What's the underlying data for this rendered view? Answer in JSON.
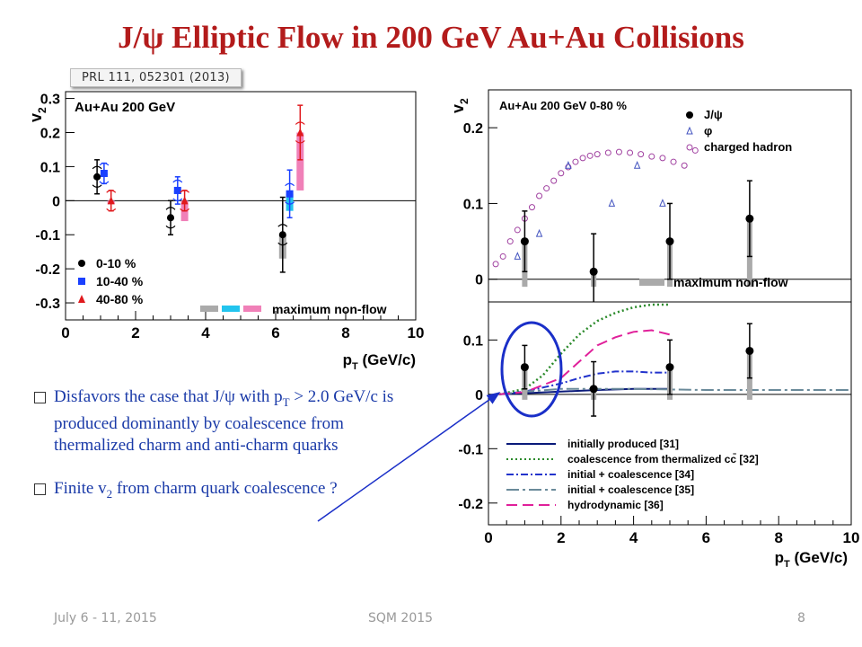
{
  "slide": {
    "title": "J/ψ Elliptic Flow in 200 GeV Au+Au Collisions",
    "reference": "PRL 111, 052301 (2013)",
    "bullets": [
      {
        "pre": "Disfavors the case that J/ψ with p",
        "sub": "T",
        "post": " > 2.0 GeV/c is produced dominantly by coalescence from thermalized charm and anti-charm quarks"
      },
      {
        "pre": "Finite v",
        "sub": "2",
        "post": " from charm quark coalescence ?"
      }
    ],
    "footer": {
      "date": "July 6 - 11,  2015",
      "conference": "SQM 2015",
      "page": "8"
    },
    "colors": {
      "title": "#b31b1b",
      "bullet_text": "#1a3aa8",
      "ellipse": "#1a2fc8"
    }
  },
  "chart_data": [
    {
      "type": "scatter",
      "ylabel": "v2",
      "xlabel": "pT (GeV/c)",
      "xlim": [
        0,
        10
      ],
      "ylim": [
        -0.35,
        0.32
      ],
      "xticks": [
        "0",
        "2",
        "4",
        "6",
        "8",
        "10"
      ],
      "yticks": [
        "0.3",
        "0.2",
        "0.1",
        "0",
        "-0.1",
        "-0.2",
        "-0.3"
      ],
      "label": "Au+Au 200 GeV",
      "legend_placement": "bottom-left",
      "legend_note": "maximum non-flow",
      "series": [
        {
          "name": "0-10 %",
          "color": "#000000",
          "marker": "circle",
          "points": [
            {
              "x": 0.9,
              "y": 0.07,
              "err": 0.05,
              "nf_lo": 0.07,
              "nf_hi": 0.07
            },
            {
              "x": 3.0,
              "y": -0.05,
              "err": 0.05,
              "nf_lo": -0.05,
              "nf_hi": -0.05
            },
            {
              "x": 6.2,
              "y": -0.1,
              "err": 0.11,
              "nf_lo": -0.17,
              "nf_hi": -0.1
            }
          ]
        },
        {
          "name": "10-40 %",
          "color": "#1a40ff",
          "marker": "square",
          "points": [
            {
              "x": 1.1,
              "y": 0.08,
              "err": 0.03,
              "nf_lo": 0.075,
              "nf_hi": 0.08
            },
            {
              "x": 3.2,
              "y": 0.03,
              "err": 0.04,
              "nf_lo": 0.02,
              "nf_hi": 0.03
            },
            {
              "x": 6.4,
              "y": 0.02,
              "err": 0.07,
              "nf_lo": -0.03,
              "nf_hi": 0.02
            }
          ]
        },
        {
          "name": "40-80 %",
          "color": "#e0191d",
          "marker": "triangle",
          "points": [
            {
              "x": 1.3,
              "y": 0.0,
              "err": 0.03,
              "nf_lo": -0.01,
              "nf_hi": 0.0
            },
            {
              "x": 3.4,
              "y": 0.0,
              "err": 0.03,
              "nf_lo": -0.06,
              "nf_hi": 0.0
            },
            {
              "x": 6.7,
              "y": 0.2,
              "err": 0.08,
              "nf_lo": 0.03,
              "nf_hi": 0.2
            }
          ]
        }
      ],
      "nonflow_colors": [
        "#aaaaaa",
        "#22c4ee",
        "#f080b8"
      ]
    },
    {
      "type": "scatter",
      "ylabel": "v2",
      "xlim": [
        0,
        10
      ],
      "ylim": [
        -0.03,
        0.25
      ],
      "yticks": [
        "0.2",
        "0.1",
        "0"
      ],
      "label": "Au+Au 200 GeV 0-80 %",
      "legend_placement": "top-right",
      "legend_note": "maximum non-flow",
      "series": [
        {
          "name": "J/ψ",
          "color": "#000000",
          "marker": "circle",
          "points": [
            {
              "x": 1.0,
              "y": 0.05,
              "err": 0.04
            },
            {
              "x": 2.9,
              "y": 0.01,
              "err": 0.05
            },
            {
              "x": 5.0,
              "y": 0.05,
              "err": 0.05
            },
            {
              "x": 7.2,
              "y": 0.08,
              "err": 0.05
            }
          ]
        },
        {
          "name": "φ",
          "color": "#4455c0",
          "marker": "triangle-open",
          "points": [
            {
              "x": 0.8,
              "y": 0.03
            },
            {
              "x": 1.4,
              "y": 0.06
            },
            {
              "x": 2.2,
              "y": 0.15
            },
            {
              "x": 3.4,
              "y": 0.1
            },
            {
              "x": 4.1,
              "y": 0.15
            },
            {
              "x": 4.8,
              "y": 0.1
            }
          ]
        },
        {
          "name": "charged hadron",
          "color": "#a040a0",
          "marker": "circle-open",
          "points": [
            {
              "x": 0.2,
              "y": 0.02
            },
            {
              "x": 0.4,
              "y": 0.03
            },
            {
              "x": 0.6,
              "y": 0.05
            },
            {
              "x": 0.8,
              "y": 0.065
            },
            {
              "x": 1.0,
              "y": 0.08
            },
            {
              "x": 1.2,
              "y": 0.095
            },
            {
              "x": 1.4,
              "y": 0.11
            },
            {
              "x": 1.6,
              "y": 0.12
            },
            {
              "x": 1.8,
              "y": 0.13
            },
            {
              "x": 2.0,
              "y": 0.14
            },
            {
              "x": 2.2,
              "y": 0.148
            },
            {
              "x": 2.4,
              "y": 0.155
            },
            {
              "x": 2.6,
              "y": 0.16
            },
            {
              "x": 2.8,
              "y": 0.163
            },
            {
              "x": 3.0,
              "y": 0.165
            },
            {
              "x": 3.3,
              "y": 0.167
            },
            {
              "x": 3.6,
              "y": 0.168
            },
            {
              "x": 3.9,
              "y": 0.167
            },
            {
              "x": 4.2,
              "y": 0.165
            },
            {
              "x": 4.5,
              "y": 0.162
            },
            {
              "x": 4.8,
              "y": 0.16
            },
            {
              "x": 5.1,
              "y": 0.155
            },
            {
              "x": 5.4,
              "y": 0.15
            },
            {
              "x": 5.7,
              "y": 0.17
            }
          ]
        }
      ]
    },
    {
      "type": "line",
      "xlabel": "pT (GeV/c)",
      "xlim": [
        0,
        10
      ],
      "ylim": [
        -0.24,
        0.17
      ],
      "xticks": [
        "0",
        "2",
        "4",
        "6",
        "8",
        "10"
      ],
      "yticks": [
        "0.1",
        "0",
        "-0.1",
        "-0.2"
      ],
      "legend_placement": "bottom-left",
      "points": [
        {
          "x": 1.0,
          "y": 0.05,
          "err": 0.04
        },
        {
          "x": 2.9,
          "y": 0.01,
          "err": 0.05
        },
        {
          "x": 5.0,
          "y": 0.05,
          "err": 0.05
        },
        {
          "x": 7.2,
          "y": 0.08,
          "err": 0.05
        }
      ],
      "series": [
        {
          "name": "initially produced [31]",
          "color": "#0a1a7a",
          "dash": "",
          "x": [
            0.3,
            1.0,
            2.0,
            3.0,
            4.0,
            5.0
          ],
          "y": [
            0.0,
            0.002,
            0.005,
            0.008,
            0.01,
            0.01
          ]
        },
        {
          "name": "coalescence from thermalized cc̄ [32]",
          "color": "#2a8a2a",
          "dash": "2,3",
          "x": [
            0.3,
            1.0,
            1.5,
            2.0,
            2.5,
            3.0,
            3.5,
            4.0,
            4.5,
            5.0
          ],
          "y": [
            0.0,
            0.01,
            0.035,
            0.075,
            0.11,
            0.135,
            0.15,
            0.16,
            0.165,
            0.165
          ]
        },
        {
          "name": "initial + coalescence [34]",
          "color": "#2233cc",
          "dash": "8,3,2,3",
          "x": [
            0.3,
            1.0,
            2.0,
            2.5,
            3.0,
            3.5,
            4.0,
            4.5,
            5.0
          ],
          "y": [
            0.0,
            0.005,
            0.02,
            0.03,
            0.038,
            0.042,
            0.042,
            0.04,
            0.04
          ]
        },
        {
          "name": "initial + coalescence [35]",
          "color": "#6a8a9a",
          "dash": "14,4,3,4",
          "x": [
            0.3,
            1.0,
            2.0,
            4.0,
            6.0,
            8.0,
            10.0
          ],
          "y": [
            0.0,
            0.005,
            0.01,
            0.01,
            0.008,
            0.008,
            0.008
          ]
        },
        {
          "name": "hydrodynamic [36]",
          "color": "#e0209a",
          "dash": "12,6",
          "x": [
            0.3,
            1.0,
            2.0,
            2.5,
            3.0,
            3.5,
            4.0,
            4.5,
            5.0
          ],
          "y": [
            0.0,
            0.004,
            0.03,
            0.06,
            0.09,
            0.105,
            0.115,
            0.118,
            0.11
          ]
        }
      ]
    }
  ]
}
